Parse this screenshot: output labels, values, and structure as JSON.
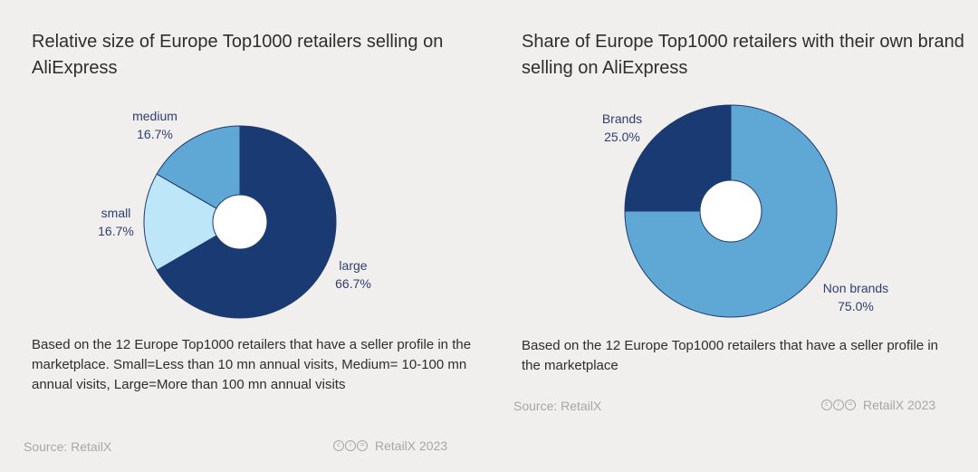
{
  "chart_data": [
    {
      "type": "pie",
      "title": "Relative size of Europe Top1000 retailers selling on AliExpress",
      "categories": [
        "large",
        "small",
        "medium"
      ],
      "values": [
        66.7,
        16.7,
        16.7
      ],
      "labels": [
        "66.7%",
        "16.7%",
        "16.7%"
      ],
      "colors": [
        "#1a3a73",
        "#bde6f9",
        "#5fa8d6"
      ],
      "note": "Based on the 12 Europe Top1000 retailers that have a seller profile in the marketplace. Small=Less than 10 mn annual visits, Medium= 10-100 mn annual visits, Large=More than 100 mn annual visits",
      "source": "Source: RetailX",
      "credit": "RetailX 2023"
    },
    {
      "type": "pie",
      "title": "Share of Europe Top1000 retailers with their own brand selling on  AliExpress",
      "categories": [
        "Non brands",
        "Brands"
      ],
      "values": [
        75.0,
        25.0
      ],
      "labels": [
        "75.0%",
        "25.0%"
      ],
      "colors": [
        "#5fa8d6",
        "#1a3a73"
      ],
      "note": "Based on the 12 Europe Top1000 retailers that have a seller profile in the marketplace",
      "source": "Source: RetailX",
      "credit": "RetailX 2023"
    }
  ],
  "icons": {
    "license": "creative-commons-icon"
  }
}
